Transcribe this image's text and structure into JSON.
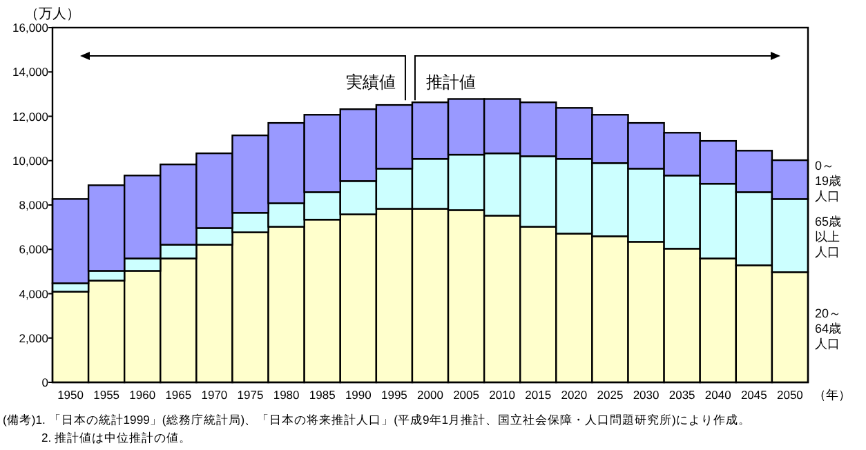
{
  "chart_data": {
    "type": "bar",
    "stacked": true,
    "xlabel": "（年）",
    "ylabel": "（万人）",
    "categories": [
      "1950",
      "1955",
      "1960",
      "1965",
      "1970",
      "1975",
      "1980",
      "1985",
      "1990",
      "1995",
      "2000",
      "2005",
      "2010",
      "2015",
      "2020",
      "2025",
      "2030",
      "2035",
      "2040",
      "2045",
      "2050"
    ],
    "series": [
      {
        "name": "20～64歳人口",
        "color": "#ffffcc",
        "values": [
          4090,
          4590,
          5030,
          5590,
          6210,
          6770,
          7020,
          7340,
          7580,
          7830,
          7830,
          7770,
          7520,
          7020,
          6710,
          6590,
          6340,
          6030,
          5590,
          5280,
          4970
        ]
      },
      {
        "name": "65歳以上人口",
        "color": "#ccffff",
        "values": [
          380,
          440,
          560,
          620,
          750,
          880,
          1060,
          1240,
          1500,
          1810,
          2250,
          2500,
          2810,
          3180,
          3370,
          3300,
          3300,
          3300,
          3370,
          3300,
          3300
        ]
      },
      {
        "name": "0～19歳人口",
        "color": "#9999ff",
        "values": [
          3800,
          3860,
          3740,
          3620,
          3370,
          3490,
          3620,
          3490,
          3240,
          2870,
          2550,
          2510,
          2450,
          2430,
          2300,
          2180,
          2060,
          1930,
          1930,
          1870,
          1750
        ]
      }
    ],
    "ylim": [
      0,
      16000
    ],
    "yticks": [
      {
        "value": 0,
        "label": "0"
      },
      {
        "value": 2000,
        "label": "2,000"
      },
      {
        "value": 4000,
        "label": "4,000"
      },
      {
        "value": 6000,
        "label": "6,000"
      },
      {
        "value": 8000,
        "label": "8,000"
      },
      {
        "value": 10000,
        "label": "10,000"
      },
      {
        "value": 12000,
        "label": "12,000"
      },
      {
        "value": 14000,
        "label": "14,000"
      },
      {
        "value": 16000,
        "label": "16,000"
      }
    ],
    "grid": false,
    "annotations": [
      "実績値",
      "推計値",
      "(備考)1. 「日本の統計1999」(総務庁統計局)、「日本の将来推計人口」(平成9年1月推計、国立社会保障・人口問題研究所)により作成。",
      "2. 推計値は中位推計の値。"
    ]
  }
}
